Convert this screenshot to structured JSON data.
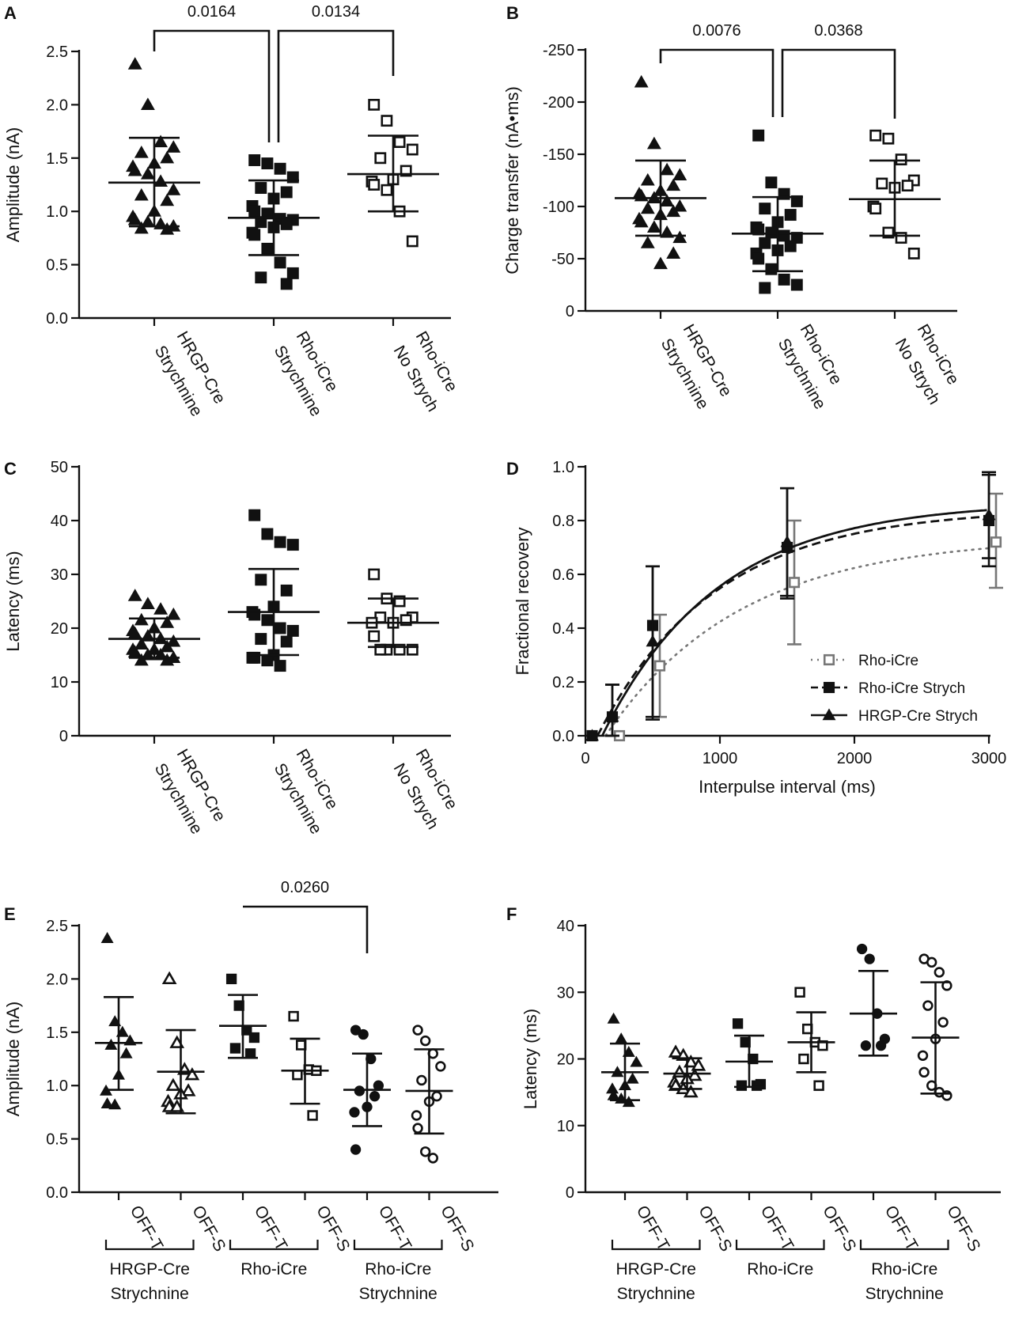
{
  "figure": {
    "colors": {
      "ink": "#111111",
      "gray": "#777777",
      "bg": "#ffffff"
    }
  },
  "panels": [
    {
      "id": "A",
      "letter": "A",
      "chart_data": {
        "type": "scatter",
        "ylabel": "Amplitude (nA)",
        "ylim": [
          0,
          2.5
        ],
        "yticks": [
          0,
          0.5,
          1.0,
          1.5,
          2.0,
          2.5
        ],
        "ytick_labels": [
          "0.0",
          "0.5",
          "1.0",
          "1.5",
          "2.0",
          "2.5"
        ],
        "groups": [
          {
            "name": "HRGP-Cre Strychnine",
            "lines": [
              "HRGP-Cre",
              "Strychnine"
            ],
            "marker": "triangle-filled",
            "mean": 1.27,
            "sd_low": 0.86,
            "sd_high": 1.69,
            "values": [
              2.38,
              2.0,
              1.65,
              1.6,
              1.55,
              1.5,
              1.45,
              1.42,
              1.38,
              1.35,
              1.28,
              1.2,
              1.15,
              1.1,
              1.0,
              0.95,
              0.92,
              0.9,
              0.88,
              0.86,
              0.84,
              0.83
            ]
          },
          {
            "name": "Rho-iCre Strychnine",
            "lines": [
              "Rho-iCre",
              "Strychnine"
            ],
            "marker": "square-filled",
            "mean": 0.94,
            "sd_low": 0.59,
            "sd_high": 1.29,
            "values": [
              1.48,
              1.45,
              1.4,
              1.32,
              1.22,
              1.18,
              1.12,
              1.05,
              1.0,
              0.98,
              0.93,
              0.92,
              0.9,
              0.88,
              0.85,
              0.8,
              0.78,
              0.65,
              0.52,
              0.42,
              0.38,
              0.32
            ]
          },
          {
            "name": "Rho-iCre No Strych",
            "lines": [
              "Rho-iCre",
              "No Strych"
            ],
            "marker": "square-open",
            "mean": 1.35,
            "sd_low": 1.0,
            "sd_high": 1.71,
            "values": [
              2.0,
              1.85,
              1.65,
              1.58,
              1.5,
              1.38,
              1.3,
              1.28,
              1.25,
              1.2,
              1.0,
              0.72
            ]
          }
        ],
        "comparisons": [
          {
            "label": "0.0164",
            "from": 0,
            "to": 1
          },
          {
            "label": "0.0134",
            "from": 1,
            "to": 2
          }
        ]
      }
    },
    {
      "id": "B",
      "letter": "B",
      "chart_data": {
        "type": "scatter",
        "ylabel": "Charge transfer (nA•ms)",
        "ylim": [
          0,
          250
        ],
        "yticks": [
          0,
          50,
          100,
          150,
          200,
          250
        ],
        "ytick_labels": [
          "0",
          "-50",
          "-100",
          "-150",
          "-200",
          "-250"
        ],
        "groups": [
          {
            "name": "HRGP-Cre Strychnine",
            "lines": [
              "HRGP-Cre",
              "Strychnine"
            ],
            "marker": "triangle-filled",
            "mean": 108,
            "sd_low": 72,
            "sd_high": 144,
            "values": [
              219,
              160,
              135,
              130,
              125,
              120,
              115,
              112,
              110,
              108,
              105,
              100,
              98,
              95,
              92,
              88,
              85,
              80,
              75,
              70,
              65,
              55,
              45
            ]
          },
          {
            "name": "Rho-iCre Strychnine",
            "lines": [
              "Rho-iCre",
              "Strychnine"
            ],
            "marker": "square-filled",
            "mean": 74,
            "sd_low": 38,
            "sd_high": 109,
            "values": [
              168,
              123,
              112,
              105,
              98,
              92,
              85,
              80,
              78,
              75,
              72,
              70,
              65,
              62,
              58,
              55,
              50,
              40,
              30,
              25,
              22
            ]
          },
          {
            "name": "Rho-iCre No Strych",
            "lines": [
              "Rho-iCre",
              "No Strych"
            ],
            "marker": "square-open",
            "mean": 107,
            "sd_low": 72,
            "sd_high": 144,
            "values": [
              168,
              165,
              145,
              125,
              122,
              120,
              118,
              100,
              98,
              75,
              70,
              55
            ]
          }
        ],
        "comparisons": [
          {
            "label": "0.0076",
            "from": 0,
            "to": 1
          },
          {
            "label": "0.0368",
            "from": 1,
            "to": 2
          }
        ]
      }
    },
    {
      "id": "C",
      "letter": "C",
      "chart_data": {
        "type": "scatter",
        "ylabel": "Latency (ms)",
        "ylim": [
          0,
          50
        ],
        "yticks": [
          0,
          10,
          20,
          30,
          40,
          50
        ],
        "ytick_labels": [
          "0",
          "10",
          "20",
          "30",
          "40",
          "50"
        ],
        "groups": [
          {
            "name": "HRGP-Cre Strychnine",
            "lines": [
              "HRGP-Cre",
              "Strychnine"
            ],
            "marker": "triangle-filled",
            "mean": 18,
            "sd_low": 14.5,
            "sd_high": 21.8,
            "values": [
              26,
              24.5,
              23.5,
              22.5,
              21.5,
              21,
              20,
              19.5,
              19,
              18.5,
              18,
              17.5,
              17,
              16.5,
              16,
              16,
              15.5,
              15,
              15,
              14.5,
              14,
              14
            ]
          },
          {
            "name": "Rho-iCre Strychnine",
            "lines": [
              "Rho-iCre",
              "Strychnine"
            ],
            "marker": "square-filled",
            "mean": 23,
            "sd_low": 15,
            "sd_high": 31,
            "values": [
              41,
              37.5,
              36,
              35.5,
              29,
              27,
              24,
              23,
              22.5,
              21.5,
              20,
              19.5,
              18,
              17.5,
              15,
              14.5,
              14.5,
              14,
              13
            ]
          },
          {
            "name": "Rho-iCre No Strych",
            "lines": [
              "Rho-iCre",
              "No Strych"
            ],
            "marker": "square-open",
            "mean": 21,
            "sd_low": 16.5,
            "sd_high": 25.5,
            "values": [
              30,
              25.5,
              25,
              22,
              22,
              21.5,
              21,
              21,
              18.5,
              16,
              16,
              16,
              16
            ]
          }
        ],
        "comparisons": []
      }
    },
    {
      "id": "D",
      "letter": "D",
      "chart_data": {
        "type": "line",
        "xlabel": "Interpulse interval (ms)",
        "ylabel": "Fractional recovery",
        "xlim": [
          0,
          3000
        ],
        "ylim": [
          0,
          1.0
        ],
        "xticks": [
          0,
          1000,
          2000,
          3000
        ],
        "xtick_labels": [
          "0",
          "1000",
          "2000",
          "3000"
        ],
        "yticks": [
          0,
          0.2,
          0.4,
          0.6,
          0.8,
          1.0
        ],
        "ytick_labels": [
          "0.0",
          "0.2",
          "0.4",
          "0.6",
          "0.8",
          "1.0"
        ],
        "series": [
          {
            "name": "Rho-iCre",
            "marker": "square-open",
            "line": "dotted",
            "color": "#777777",
            "x": [
              50,
              200,
              500,
              1500,
              3000
            ],
            "y": [
              0,
              0,
              0.26,
              0.57,
              0.72
            ],
            "err_low": [
              0,
              0,
              0.07,
              0.34,
              0.55
            ],
            "err_high": [
              0,
              0,
              0.45,
              0.8,
              0.9
            ],
            "fit": {
              "a": 0.74,
              "tau": 1000,
              "t0": 150
            }
          },
          {
            "name": "Rho-iCre Strych",
            "marker": "square-filled",
            "line": "dashed",
            "color": "#111111",
            "x": [
              50,
              200,
              500,
              1500,
              3000
            ],
            "y": [
              0,
              0.07,
              0.41,
              0.7,
              0.8
            ],
            "err_low": [
              0,
              0,
              0.06,
              0.51,
              0.63
            ],
            "err_high": [
              0,
              0.19,
              0.63,
              0.92,
              0.97
            ],
            "fit": {
              "a": 0.845,
              "tau": 870,
              "t0": 90
            }
          },
          {
            "name": "HRGP-Cre Strych",
            "marker": "triangle-filled",
            "line": "solid",
            "color": "#111111",
            "x": [
              50,
              200,
              500,
              1500,
              3000
            ],
            "y": [
              0,
              0.07,
              0.35,
              0.72,
              0.82
            ],
            "err_low": [
              0,
              0,
              0.07,
              0.52,
              0.66
            ],
            "err_high": [
              0,
              0.19,
              0.63,
              0.92,
              0.98
            ],
            "fit": {
              "a": 0.87,
              "tau": 860,
              "t0": 125
            }
          }
        ],
        "legend_position": "lower-right"
      }
    },
    {
      "id": "E",
      "letter": "E",
      "chart_data": {
        "type": "scatter",
        "ylabel": "Amplitude (nA)",
        "ylim": [
          0,
          2.5
        ],
        "yticks": [
          0,
          0.5,
          1.0,
          1.5,
          2.0,
          2.5
        ],
        "ytick_labels": [
          "0.0",
          "0.5",
          "1.0",
          "1.5",
          "2.0",
          "2.5"
        ],
        "groups": [
          {
            "name": "HRGP-Cre Strychnine OFF-T",
            "lines": [
              "OFF-T"
            ],
            "marker": "triangle-filled",
            "mean": 1.4,
            "sd_low": 0.96,
            "sd_high": 1.83,
            "values": [
              2.38,
              1.6,
              1.5,
              1.42,
              1.38,
              1.3,
              1.1,
              0.95,
              0.83,
              0.82
            ]
          },
          {
            "name": "HRGP-Cre Strychnine OFF-S",
            "lines": [
              "OFF-S"
            ],
            "marker": "triangle-open",
            "mean": 1.13,
            "sd_low": 0.74,
            "sd_high": 1.52,
            "values": [
              2.0,
              1.4,
              1.15,
              1.1,
              1.0,
              0.95,
              0.92,
              0.85,
              0.8,
              0.8
            ]
          },
          {
            "name": "Rho-iCre OFF-T",
            "lines": [
              "OFF-T"
            ],
            "marker": "square-filled",
            "mean": 1.56,
            "sd_low": 1.26,
            "sd_high": 1.85,
            "values": [
              2.0,
              1.75,
              1.52,
              1.45,
              1.35,
              1.3
            ]
          },
          {
            "name": "Rho-iCre OFF-S",
            "lines": [
              "OFF-S"
            ],
            "marker": "square-open",
            "mean": 1.14,
            "sd_low": 0.83,
            "sd_high": 1.44,
            "values": [
              1.65,
              1.38,
              1.15,
              1.14,
              1.1,
              0.72
            ]
          },
          {
            "name": "Rho-iCre Strychnine OFF-T",
            "lines": [
              "OFF-T"
            ],
            "marker": "circle-filled",
            "mean": 0.96,
            "sd_low": 0.62,
            "sd_high": 1.3,
            "values": [
              1.52,
              1.48,
              1.25,
              1.0,
              0.95,
              0.9,
              0.8,
              0.75,
              0.4
            ]
          },
          {
            "name": "Rho-iCre Strychnine OFF-S",
            "lines": [
              "OFF-S"
            ],
            "marker": "circle-open",
            "mean": 0.95,
            "sd_low": 0.55,
            "sd_high": 1.34,
            "values": [
              1.52,
              1.42,
              1.3,
              1.18,
              1.05,
              0.9,
              0.85,
              0.72,
              0.6,
              0.38,
              0.32
            ]
          }
        ],
        "brackets": [
          {
            "lines": [
              "HRGP-Cre",
              "Strychnine"
            ],
            "from": 0,
            "to": 1
          },
          {
            "lines": [
              "Rho-iCre"
            ],
            "from": 2,
            "to": 3
          },
          {
            "lines": [
              "Rho-iCre",
              "Strychnine"
            ],
            "from": 4,
            "to": 5
          }
        ],
        "comparisons": [
          {
            "label": "0.0260",
            "from": 2,
            "to": 4
          }
        ]
      }
    },
    {
      "id": "F",
      "letter": "F",
      "chart_data": {
        "type": "scatter",
        "ylabel": "Latency (ms)",
        "ylim": [
          0,
          40
        ],
        "yticks": [
          0,
          10,
          20,
          30,
          40
        ],
        "ytick_labels": [
          "0",
          "10",
          "20",
          "30",
          "40"
        ],
        "groups": [
          {
            "name": "HRGP-Cre Strychnine OFF-T",
            "lines": [
              "OFF-T"
            ],
            "marker": "triangle-filled",
            "mean": 18,
            "sd_low": 13.8,
            "sd_high": 22.3,
            "values": [
              26,
              23,
              21,
              19.5,
              18,
              17,
              16,
              15.5,
              14.5,
              14,
              13.5
            ]
          },
          {
            "name": "HRGP-Cre Strychnine OFF-S",
            "lines": [
              "OFF-S"
            ],
            "marker": "triangle-open",
            "mean": 17.8,
            "sd_low": 15.5,
            "sd_high": 20.1,
            "values": [
              21,
              20.5,
              19.5,
              19,
              18,
              17.5,
              17,
              16.5,
              16,
              15.5,
              15
            ]
          },
          {
            "name": "Rho-iCre OFF-T",
            "lines": [
              "OFF-T"
            ],
            "marker": "square-filled",
            "mean": 19.6,
            "sd_low": 15.8,
            "sd_high": 23.5,
            "values": [
              25.3,
              22.5,
              20,
              16.2,
              16,
              16
            ]
          },
          {
            "name": "Rho-iCre OFF-S",
            "lines": [
              "OFF-S"
            ],
            "marker": "square-open",
            "mean": 22.5,
            "sd_low": 18,
            "sd_high": 27,
            "values": [
              30,
              24.5,
              22.5,
              22,
              20,
              16
            ]
          },
          {
            "name": "Rho-iCre Strychnine OFF-T",
            "lines": [
              "OFF-T"
            ],
            "marker": "circle-filled",
            "mean": 26.8,
            "sd_low": 20.5,
            "sd_high": 33.2,
            "values": [
              36.5,
              35,
              26.8,
              23,
              22,
              22
            ]
          },
          {
            "name": "Rho-iCre Strychnine OFF-S",
            "lines": [
              "OFF-S"
            ],
            "marker": "circle-open",
            "mean": 23.2,
            "sd_low": 14.8,
            "sd_high": 31.5,
            "values": [
              35,
              34.5,
              33,
              31,
              28,
              25.5,
              23,
              20.5,
              18,
              16,
              15,
              14.5
            ]
          }
        ],
        "brackets": [
          {
            "lines": [
              "HRGP-Cre",
              "Strychnine"
            ],
            "from": 0,
            "to": 1
          },
          {
            "lines": [
              "Rho-iCre"
            ],
            "from": 2,
            "to": 3
          },
          {
            "lines": [
              "Rho-iCre",
              "Strychnine"
            ],
            "from": 4,
            "to": 5
          }
        ],
        "comparisons": []
      }
    }
  ]
}
